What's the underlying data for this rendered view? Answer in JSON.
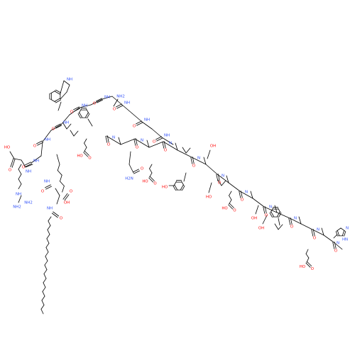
{
  "colors": {
    "bond": "#000000",
    "oxygen": "#ff0d0d",
    "nitrogen": "#3050f8",
    "background": "#ffffff"
  },
  "atom_labels": {
    "O": "O",
    "OH": "OH",
    "HO": "HO",
    "N": "N",
    "NH": "NH",
    "HN": "HN",
    "NH2": "NH2",
    "H2N": "H2N",
    "NH2_plus": "NH2"
  }
}
